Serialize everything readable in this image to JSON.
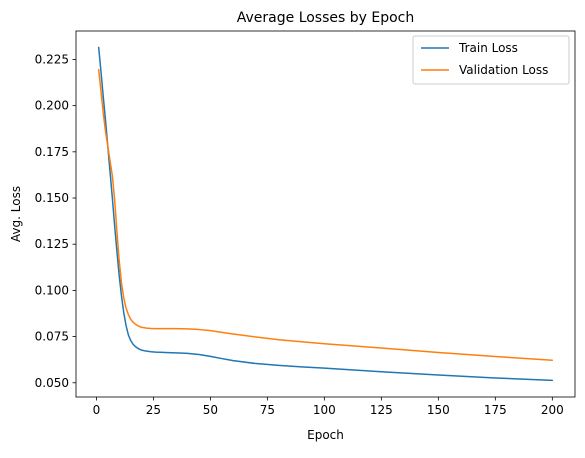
{
  "chart_data": {
    "type": "line",
    "title": "Average Losses by Epoch",
    "xlabel": "Epoch",
    "ylabel": "Avg. Loss",
    "xlim": [
      -8.95,
      209.95
    ],
    "ylim": [
      0.0423,
      0.2404
    ],
    "xticks": [
      0,
      25,
      50,
      75,
      100,
      125,
      150,
      175,
      200
    ],
    "xtick_labels": [
      "0",
      "25",
      "50",
      "75",
      "100",
      "125",
      "150",
      "175",
      "200"
    ],
    "yticks": [
      0.05,
      0.075,
      0.1,
      0.125,
      0.15,
      0.175,
      0.2,
      0.225
    ],
    "ytick_labels": [
      "0.050",
      "0.075",
      "0.100",
      "0.125",
      "0.150",
      "0.175",
      "0.200",
      "0.225"
    ],
    "grid": false,
    "legend_position": "upper right",
    "series": [
      {
        "name": "Train Loss",
        "color": "#1f77b4",
        "x": [
          1,
          2,
          3,
          4,
          5,
          6,
          7,
          8,
          9,
          10,
          11,
          12,
          13,
          14,
          15,
          16,
          17,
          18,
          19,
          20,
          22,
          24,
          26,
          28,
          30,
          35,
          40,
          45,
          50,
          55,
          60,
          70,
          80,
          90,
          100,
          125,
          150,
          175,
          200
        ],
        "y": [
          0.2315,
          0.2185,
          0.205,
          0.192,
          0.178,
          0.164,
          0.15,
          0.135,
          0.121,
          0.108,
          0.097,
          0.088,
          0.081,
          0.076,
          0.073,
          0.071,
          0.0697,
          0.0688,
          0.0681,
          0.0676,
          0.0671,
          0.0668,
          0.0666,
          0.0665,
          0.0664,
          0.0662,
          0.0659,
          0.0653,
          0.0643,
          0.0631,
          0.062,
          0.0604,
          0.0594,
          0.0586,
          0.0579,
          0.056,
          0.0542,
          0.0526,
          0.0513
        ]
      },
      {
        "name": "Validation Loss",
        "color": "#ff7f0e",
        "x": [
          1,
          2,
          3,
          4,
          5,
          6,
          7,
          8,
          9,
          10,
          11,
          12,
          13,
          14,
          15,
          16,
          17,
          18,
          19,
          20,
          22,
          24,
          26,
          28,
          30,
          35,
          40,
          45,
          50,
          55,
          60,
          70,
          80,
          90,
          100,
          125,
          150,
          175,
          200
        ],
        "y": [
          0.2195,
          0.208,
          0.196,
          0.186,
          0.178,
          0.17,
          0.162,
          0.149,
          0.132,
          0.116,
          0.104,
          0.096,
          0.0905,
          0.087,
          0.0845,
          0.0829,
          0.0818,
          0.081,
          0.0804,
          0.08,
          0.0796,
          0.0794,
          0.0793,
          0.0793,
          0.0793,
          0.0793,
          0.0792,
          0.0788,
          0.0782,
          0.0773,
          0.0764,
          0.0748,
          0.0733,
          0.0722,
          0.0711,
          0.0688,
          0.0664,
          0.0642,
          0.0622
        ]
      }
    ]
  }
}
